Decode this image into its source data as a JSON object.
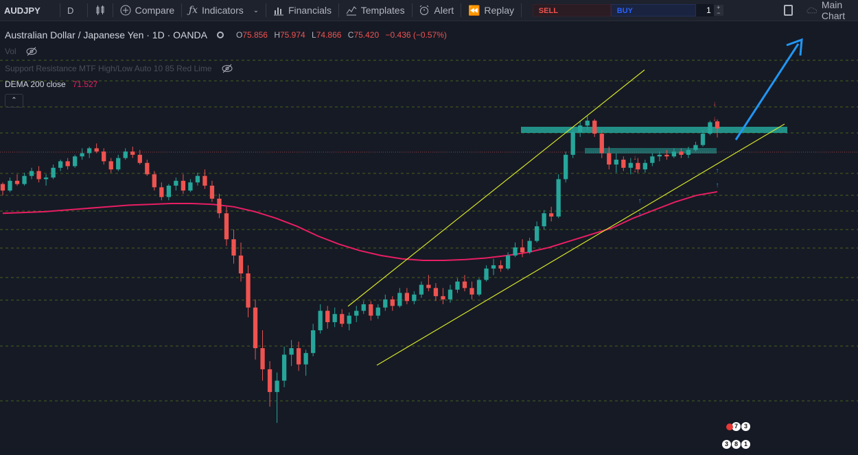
{
  "toolbar": {
    "symbol": "AUDJPY",
    "interval": "D",
    "compare_label": "Compare",
    "indicators_label": "Indicators",
    "financials_label": "Financials",
    "templates_label": "Templates",
    "alert_label": "Alert",
    "replay_label": "Replay",
    "sell_label": "SELL",
    "buy_label": "BUY",
    "quantity": "1",
    "qty_plus": "+",
    "qty_minus": "−",
    "main_chart_label": "Main Chart"
  },
  "legend": {
    "title": "Australian Dollar / Japanese Yen · 1D · OANDA",
    "open_label": "O",
    "open": "75.856",
    "high_label": "H",
    "high": "75.974",
    "low_label": "L",
    "low": "74.866",
    "close_label": "C",
    "close": "75.420",
    "change": "−0.436 (−0.57%)",
    "vol_label": "Vol",
    "sr_label": "Support Resistance MTF High/Low Auto 10 85 Red Lime",
    "dema_label": "DEMA 200 close",
    "dema_value": "71.527",
    "collapse_glyph": "⌃"
  },
  "badges": [
    "7",
    "3",
    "3",
    "8",
    "1"
  ],
  "colors": {
    "background": "#161a25",
    "up": "#26a69a",
    "down": "#ef5350",
    "dema": "#e91e63",
    "trendline": "#d6e629",
    "arrow": "#2196f3",
    "resistance_zone": "#26a69a",
    "grid_dashed": "#5a7a1a",
    "price_line": "#ef5350"
  },
  "icons": [
    "candles-icon",
    "plus-circle-icon",
    "fx-icon",
    "financials-icon",
    "templates-icon",
    "alert-icon",
    "replay-icon",
    "layout-icon",
    "cloud-icon",
    "eye-off-icon"
  ],
  "chart_data": {
    "type": "candlestick",
    "symbol": "AUDJPY",
    "interval": "1D",
    "candles": [
      {
        "o": 72.0,
        "h": 72.1,
        "l": 71.3,
        "c": 71.6
      },
      {
        "o": 71.6,
        "h": 72.4,
        "l": 71.5,
        "c": 72.2
      },
      {
        "o": 72.2,
        "h": 72.6,
        "l": 71.9,
        "c": 72.0
      },
      {
        "o": 72.0,
        "h": 72.7,
        "l": 71.9,
        "c": 72.5
      },
      {
        "o": 72.5,
        "h": 73.0,
        "l": 72.3,
        "c": 72.8
      },
      {
        "o": 72.8,
        "h": 73.1,
        "l": 72.1,
        "c": 72.3
      },
      {
        "o": 72.3,
        "h": 72.6,
        "l": 71.9,
        "c": 72.4
      },
      {
        "o": 72.4,
        "h": 73.2,
        "l": 72.3,
        "c": 73.0
      },
      {
        "o": 73.0,
        "h": 73.5,
        "l": 72.8,
        "c": 73.4
      },
      {
        "o": 73.4,
        "h": 73.6,
        "l": 72.9,
        "c": 73.1
      },
      {
        "o": 73.1,
        "h": 73.8,
        "l": 73.0,
        "c": 73.7
      },
      {
        "o": 73.7,
        "h": 74.2,
        "l": 73.5,
        "c": 73.9
      },
      {
        "o": 73.9,
        "h": 74.3,
        "l": 73.6,
        "c": 74.2
      },
      {
        "o": 74.2,
        "h": 74.5,
        "l": 73.9,
        "c": 74.0
      },
      {
        "o": 74.0,
        "h": 74.2,
        "l": 73.2,
        "c": 73.4
      },
      {
        "o": 73.4,
        "h": 73.6,
        "l": 72.7,
        "c": 72.9
      },
      {
        "o": 72.9,
        "h": 73.8,
        "l": 72.8,
        "c": 73.6
      },
      {
        "o": 73.6,
        "h": 74.2,
        "l": 73.5,
        "c": 74.0
      },
      {
        "o": 74.0,
        "h": 74.3,
        "l": 73.6,
        "c": 73.8
      },
      {
        "o": 73.8,
        "h": 74.1,
        "l": 73.2,
        "c": 73.3
      },
      {
        "o": 73.3,
        "h": 73.5,
        "l": 72.5,
        "c": 72.6
      },
      {
        "o": 72.6,
        "h": 72.8,
        "l": 71.6,
        "c": 71.8
      },
      {
        "o": 71.8,
        "h": 72.1,
        "l": 71.0,
        "c": 71.2
      },
      {
        "o": 71.2,
        "h": 72.0,
        "l": 71.0,
        "c": 71.9
      },
      {
        "o": 71.9,
        "h": 72.4,
        "l": 71.6,
        "c": 72.2
      },
      {
        "o": 72.2,
        "h": 72.6,
        "l": 71.4,
        "c": 71.6
      },
      {
        "o": 71.6,
        "h": 72.3,
        "l": 71.5,
        "c": 72.1
      },
      {
        "o": 72.1,
        "h": 72.7,
        "l": 71.9,
        "c": 72.5
      },
      {
        "o": 72.5,
        "h": 72.9,
        "l": 71.7,
        "c": 71.9
      },
      {
        "o": 71.9,
        "h": 72.2,
        "l": 70.9,
        "c": 71.1
      },
      {
        "o": 71.1,
        "h": 71.4,
        "l": 69.9,
        "c": 70.2
      },
      {
        "o": 70.2,
        "h": 70.6,
        "l": 68.2,
        "c": 68.6
      },
      {
        "o": 68.6,
        "h": 69.2,
        "l": 67.1,
        "c": 67.6
      },
      {
        "o": 67.6,
        "h": 68.4,
        "l": 66.0,
        "c": 66.5
      },
      {
        "o": 66.5,
        "h": 67.0,
        "l": 63.8,
        "c": 64.4
      },
      {
        "o": 64.4,
        "h": 64.9,
        "l": 61.2,
        "c": 61.9
      },
      {
        "o": 61.9,
        "h": 63.0,
        "l": 59.9,
        "c": 60.6
      },
      {
        "o": 60.6,
        "h": 61.1,
        "l": 58.3,
        "c": 59.2
      },
      {
        "o": 59.2,
        "h": 60.4,
        "l": 57.3,
        "c": 59.9
      },
      {
        "o": 59.9,
        "h": 62.0,
        "l": 59.5,
        "c": 61.5
      },
      {
        "o": 61.5,
        "h": 62.4,
        "l": 60.8,
        "c": 61.9
      },
      {
        "o": 61.9,
        "h": 62.3,
        "l": 60.5,
        "c": 60.9
      },
      {
        "o": 60.9,
        "h": 61.8,
        "l": 60.2,
        "c": 61.6
      },
      {
        "o": 61.6,
        "h": 63.4,
        "l": 61.4,
        "c": 63.0
      },
      {
        "o": 63.0,
        "h": 64.6,
        "l": 62.8,
        "c": 64.2
      },
      {
        "o": 64.2,
        "h": 64.5,
        "l": 63.1,
        "c": 63.5
      },
      {
        "o": 63.5,
        "h": 64.4,
        "l": 63.2,
        "c": 64.0
      },
      {
        "o": 64.0,
        "h": 64.3,
        "l": 63.2,
        "c": 63.4
      },
      {
        "o": 63.4,
        "h": 64.1,
        "l": 63.0,
        "c": 63.9
      },
      {
        "o": 63.9,
        "h": 64.5,
        "l": 63.5,
        "c": 64.2
      },
      {
        "o": 64.2,
        "h": 64.8,
        "l": 64.0,
        "c": 64.6
      },
      {
        "o": 64.6,
        "h": 64.8,
        "l": 63.6,
        "c": 63.9
      },
      {
        "o": 63.9,
        "h": 64.6,
        "l": 63.7,
        "c": 64.4
      },
      {
        "o": 64.4,
        "h": 65.2,
        "l": 64.2,
        "c": 64.9
      },
      {
        "o": 64.9,
        "h": 65.1,
        "l": 64.2,
        "c": 64.5
      },
      {
        "o": 64.5,
        "h": 65.6,
        "l": 64.4,
        "c": 65.3
      },
      {
        "o": 65.3,
        "h": 65.6,
        "l": 64.6,
        "c": 64.8
      },
      {
        "o": 64.8,
        "h": 65.4,
        "l": 64.6,
        "c": 65.2
      },
      {
        "o": 65.2,
        "h": 66.0,
        "l": 65.0,
        "c": 65.8
      },
      {
        "o": 65.8,
        "h": 66.4,
        "l": 65.4,
        "c": 65.6
      },
      {
        "o": 65.6,
        "h": 65.9,
        "l": 64.8,
        "c": 65.1
      },
      {
        "o": 65.1,
        "h": 65.6,
        "l": 64.6,
        "c": 64.9
      },
      {
        "o": 64.9,
        "h": 65.8,
        "l": 64.7,
        "c": 65.5
      },
      {
        "o": 65.5,
        "h": 66.2,
        "l": 65.3,
        "c": 66.0
      },
      {
        "o": 66.0,
        "h": 66.4,
        "l": 65.4,
        "c": 65.6
      },
      {
        "o": 65.6,
        "h": 66.0,
        "l": 64.9,
        "c": 65.2
      },
      {
        "o": 65.2,
        "h": 66.2,
        "l": 65.1,
        "c": 66.1
      },
      {
        "o": 66.1,
        "h": 67.0,
        "l": 66.0,
        "c": 66.8
      },
      {
        "o": 66.8,
        "h": 67.4,
        "l": 66.4,
        "c": 67.0
      },
      {
        "o": 67.0,
        "h": 67.3,
        "l": 66.6,
        "c": 66.8
      },
      {
        "o": 66.8,
        "h": 67.8,
        "l": 66.7,
        "c": 67.6
      },
      {
        "o": 67.6,
        "h": 68.4,
        "l": 67.5,
        "c": 68.1
      },
      {
        "o": 68.1,
        "h": 68.6,
        "l": 67.5,
        "c": 67.8
      },
      {
        "o": 67.8,
        "h": 68.7,
        "l": 67.7,
        "c": 68.5
      },
      {
        "o": 68.5,
        "h": 69.7,
        "l": 68.4,
        "c": 69.4
      },
      {
        "o": 69.4,
        "h": 70.4,
        "l": 69.2,
        "c": 70.2
      },
      {
        "o": 70.2,
        "h": 70.6,
        "l": 69.7,
        "c": 70.0
      },
      {
        "o": 70.0,
        "h": 72.6,
        "l": 69.9,
        "c": 72.3
      },
      {
        "o": 72.3,
        "h": 74.0,
        "l": 72.1,
        "c": 73.8
      },
      {
        "o": 73.8,
        "h": 75.5,
        "l": 73.6,
        "c": 75.2
      },
      {
        "o": 75.2,
        "h": 75.9,
        "l": 74.9,
        "c": 75.6
      },
      {
        "o": 75.6,
        "h": 76.2,
        "l": 75.3,
        "c": 75.9
      },
      {
        "o": 75.9,
        "h": 76.0,
        "l": 74.9,
        "c": 75.1
      },
      {
        "o": 75.1,
        "h": 75.3,
        "l": 73.6,
        "c": 73.9
      },
      {
        "o": 73.9,
        "h": 74.3,
        "l": 72.9,
        "c": 73.2
      },
      {
        "o": 73.2,
        "h": 73.9,
        "l": 72.7,
        "c": 73.5
      },
      {
        "o": 73.5,
        "h": 73.7,
        "l": 72.8,
        "c": 73.0
      },
      {
        "o": 73.0,
        "h": 73.6,
        "l": 72.6,
        "c": 73.3
      },
      {
        "o": 73.3,
        "h": 73.6,
        "l": 72.7,
        "c": 72.9
      },
      {
        "o": 72.9,
        "h": 73.5,
        "l": 72.7,
        "c": 73.3
      },
      {
        "o": 73.3,
        "h": 73.9,
        "l": 73.1,
        "c": 73.7
      },
      {
        "o": 73.7,
        "h": 74.0,
        "l": 73.4,
        "c": 73.8
      },
      {
        "o": 73.8,
        "h": 74.1,
        "l": 73.5,
        "c": 73.7
      },
      {
        "o": 73.7,
        "h": 74.2,
        "l": 73.6,
        "c": 74.0
      },
      {
        "o": 74.0,
        "h": 74.2,
        "l": 73.6,
        "c": 73.8
      },
      {
        "o": 73.8,
        "h": 74.3,
        "l": 73.6,
        "c": 74.1
      },
      {
        "o": 74.1,
        "h": 74.6,
        "l": 74.0,
        "c": 74.4
      },
      {
        "o": 74.4,
        "h": 75.3,
        "l": 74.3,
        "c": 75.1
      },
      {
        "o": 75.1,
        "h": 75.9,
        "l": 75.0,
        "c": 75.8
      },
      {
        "o": 75.856,
        "h": 75.974,
        "l": 74.866,
        "c": 75.42
      }
    ],
    "dema": [
      70.2,
      70.25,
      70.3,
      70.4,
      70.5,
      70.6,
      70.7,
      70.75,
      70.8,
      70.8,
      70.75,
      70.6,
      70.3,
      69.9,
      69.4,
      68.8,
      68.3,
      67.9,
      67.6,
      67.4,
      67.3,
      67.3,
      67.35,
      67.45,
      67.6,
      67.8,
      68.1,
      68.5,
      68.9,
      69.3,
      69.9,
      70.4,
      70.9,
      71.3,
      71.527
    ],
    "resistance_zone": [
      75.7,
      76.0
    ],
    "inner_zone": [
      74.6,
      74.9
    ],
    "last_price": 75.42
  }
}
